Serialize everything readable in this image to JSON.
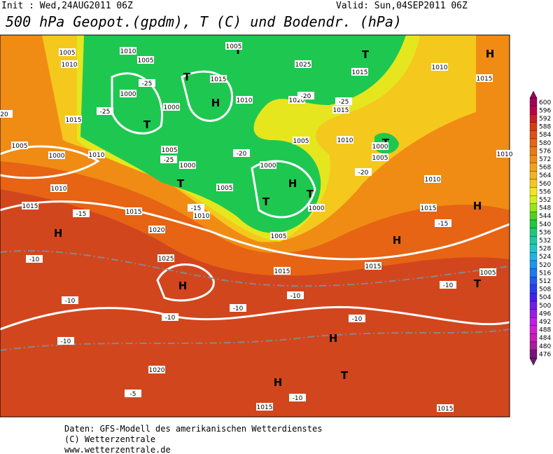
{
  "header": {
    "init": "Init : Wed,24AUG2011 06Z",
    "valid": "Valid: Sun,04SEP2011 06Z",
    "title": "500 hPa Geopot.(gpdm), T (C) und Bodendr. (hPa)"
  },
  "footer": [
    "Daten: GFS-Modell des amerikanischen Wetterdienstes",
    "(C) Wetterzentrale",
    "www.wetterzentrale.de"
  ],
  "colorbar": {
    "labels": [
      600,
      596,
      592,
      588,
      584,
      580,
      576,
      572,
      568,
      564,
      560,
      556,
      552,
      548,
      544,
      540,
      536,
      532,
      528,
      524,
      520,
      516,
      512,
      508,
      504,
      500,
      496,
      492,
      488,
      484,
      480,
      476
    ],
    "colors": [
      "#a0005a",
      "#be0046",
      "#cd1e28",
      "#d73c14",
      "#e15014",
      "#e66414",
      "#eb7814",
      "#f08c14",
      "#f5a014",
      "#f5b41e",
      "#f5c81e",
      "#f0e61e",
      "#d2f01e",
      "#96e614",
      "#50d21e",
      "#1ec83c",
      "#1ec878",
      "#1ec8a0",
      "#1ec8c8",
      "#1eb4e6",
      "#1e96f0",
      "#1e78f0",
      "#1e5af0",
      "#283cf0",
      "#461ef0",
      "#6e1ee6",
      "#961ee6",
      "#be1ee6",
      "#d21ed2",
      "#c81eb4",
      "#aa1e96",
      "#78147a"
    ]
  },
  "map": {
    "pressure_centers": [
      "H",
      "T",
      "T",
      "T",
      "H",
      "T",
      "T",
      "H",
      "T",
      "T",
      "T",
      "H",
      "H",
      "H",
      "H",
      "T",
      "H",
      "H",
      "T"
    ],
    "isobars": [
      "1005",
      "1010",
      "1010",
      "1005",
      "1005",
      "1025",
      "1015",
      "1010",
      "1015",
      "1000",
      "1000",
      "1015",
      "1010",
      "1020",
      "1015",
      "1015",
      "1005",
      "1000",
      "1010",
      "1005",
      "1000",
      "1005",
      "1000",
      "1005",
      "1010",
      "1000",
      "1005",
      "1010",
      "1010",
      "1010",
      "1015",
      "1015",
      "1010",
      "1020",
      "1000",
      "1005",
      "1015",
      "1025",
      "1015",
      "1015",
      "1005",
      "1020",
      "1015",
      "1015",
      "20"
    ],
    "temperatures": [
      "-25",
      "-25",
      "-25",
      "-20",
      "-20",
      "-25",
      "-20",
      "-15",
      "-15",
      "-15",
      "-10",
      "-10",
      "-10",
      "-10",
      "-10",
      "-10",
      "-10",
      "-10",
      "-5",
      "-10"
    ]
  }
}
